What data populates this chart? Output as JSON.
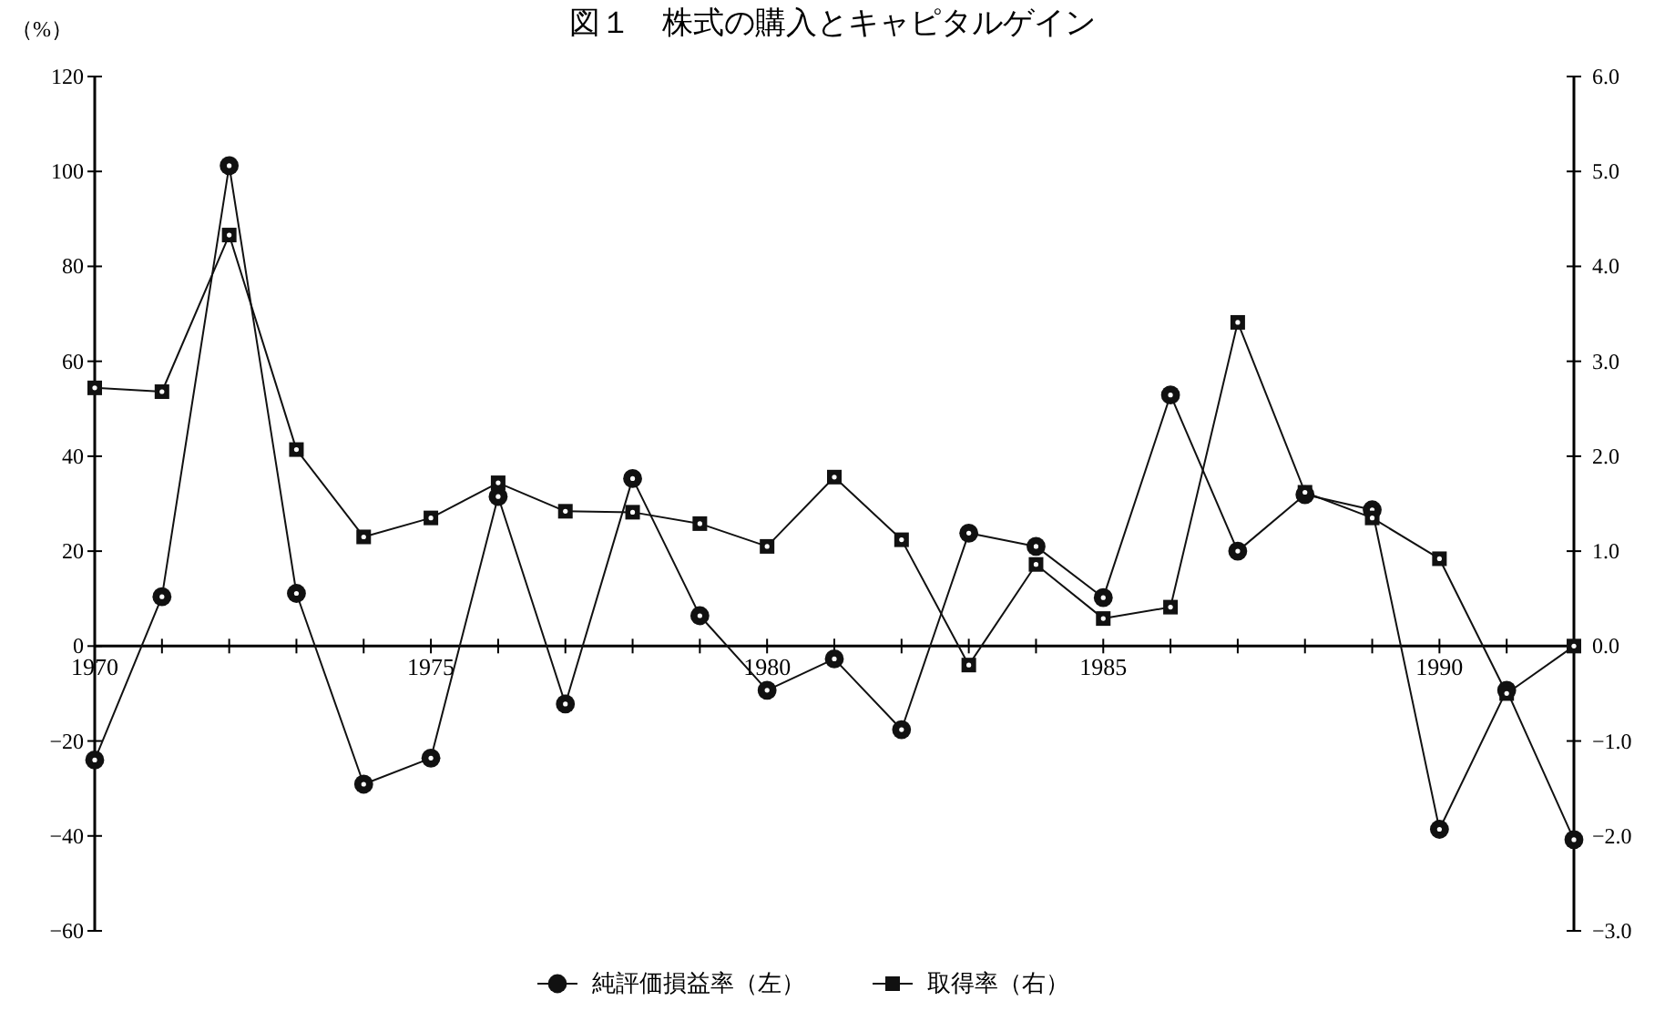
{
  "chart_data": {
    "type": "line",
    "title": "図１　株式の購入とキャピタルゲイン",
    "ylabel": "（%）",
    "x": [
      1970,
      1971,
      1972,
      1973,
      1974,
      1975,
      1976,
      1977,
      1978,
      1979,
      1980,
      1981,
      1982,
      1983,
      1984,
      1985,
      1986,
      1987,
      1988,
      1989,
      1990,
      1991,
      1992
    ],
    "xlim": [
      1970,
      1992
    ],
    "xticks": [
      1970,
      {
        "value": 1971,
        "label": null
      },
      {
        "value": 1972,
        "label": null
      },
      {
        "value": 1973,
        "label": null
      },
      {
        "value": 1974,
        "label": null
      },
      1975,
      {
        "value": 1976,
        "label": null
      },
      {
        "value": 1977,
        "label": null
      },
      {
        "value": 1978,
        "label": null
      },
      {
        "value": 1979,
        "label": null
      },
      1980,
      {
        "value": 1981,
        "label": null
      },
      {
        "value": 1982,
        "label": null
      },
      {
        "value": 1983,
        "label": null
      },
      {
        "value": 1984,
        "label": null
      },
      1985,
      {
        "value": 1986,
        "label": null
      },
      {
        "value": 1987,
        "label": null
      },
      {
        "value": 1988,
        "label": null
      },
      {
        "value": 1989,
        "label": null
      },
      1990,
      {
        "value": 1991,
        "label": null
      },
      {
        "value": 1992,
        "label": null
      }
    ],
    "ylim": [
      -60,
      120
    ],
    "yticks": [
      {
        "value": -60,
        "label": "−60"
      },
      {
        "value": -40,
        "label": "−40"
      },
      {
        "value": -20,
        "label": "−20"
      },
      0,
      20,
      40,
      60,
      80,
      100,
      120
    ],
    "y2lim": [
      -3,
      6
    ],
    "y2ticks": [
      {
        "value": -3,
        "label": "−3.0"
      },
      {
        "value": -2,
        "label": "−2.0"
      },
      {
        "value": -1,
        "label": "−1.0"
      },
      {
        "value": 0,
        "label": "0.0"
      },
      {
        "value": 1,
        "label": "1.0"
      },
      {
        "value": 2,
        "label": "2.0"
      },
      {
        "value": 3,
        "label": "3.0"
      },
      {
        "value": 4,
        "label": "4.0"
      },
      {
        "value": 5,
        "label": "5.0"
      },
      {
        "value": 6,
        "label": "6.0"
      }
    ],
    "series": [
      {
        "name": "純評価損益率（左）",
        "color": "#111111",
        "marker": "circle",
        "line_style": "solid",
        "values": [
          -24.0,
          10.4,
          101.2,
          11.1,
          -29.1,
          -23.6,
          31.5,
          -12.2,
          35.3,
          6.4,
          -9.3,
          -2.7,
          -17.6,
          23.8,
          21.0,
          10.2,
          52.9,
          20.0,
          31.9,
          28.7,
          -38.6,
          -9.3,
          -40.8
        ]
      },
      {
        "name": "取得率（右）",
        "color": "#111111",
        "marker": "square",
        "line_style": "solid",
        "axis": "y2",
        "values": [
          2.72,
          2.68,
          4.33,
          2.07,
          1.15,
          1.35,
          1.72,
          1.42,
          1.41,
          1.29,
          1.05,
          1.78,
          1.12,
          -0.2,
          0.86,
          0.29,
          0.41,
          3.41,
          1.62,
          1.35,
          0.92,
          -0.5,
          0.0
        ]
      }
    ],
    "grid": false,
    "legend": "bottom"
  }
}
